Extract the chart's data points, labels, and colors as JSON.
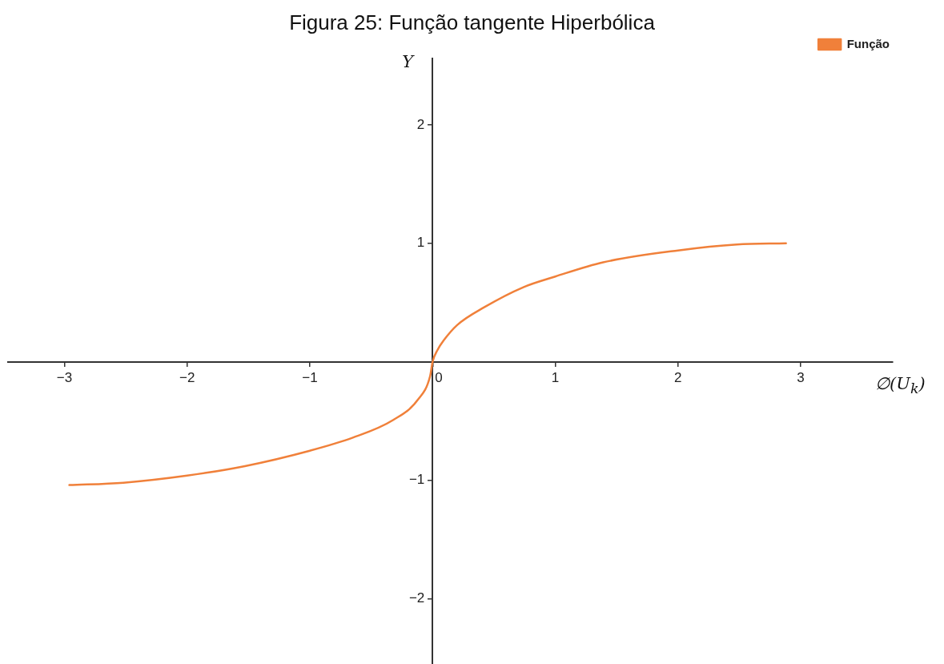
{
  "chart_data": {
    "type": "line",
    "title": "Figura 25: Função tangente Hiperbólica",
    "xlabel": "∅(U$_{k}$)",
    "ylabel": "Y",
    "legend": "top right",
    "grid": false,
    "marker": "none",
    "line_style": "solid",
    "xlim": [
      -3.46,
      3.75
    ],
    "ylim": [
      -2.55,
      2.56
    ],
    "xticks": [
      {
        "value": -3,
        "label": "−3"
      },
      {
        "value": -2,
        "label": "−2"
      },
      {
        "value": -1,
        "label": "−1"
      },
      0,
      1,
      2,
      3
    ],
    "yticks": [
      {
        "value": -2,
        "label": "−2"
      },
      {
        "value": -1,
        "label": "−1"
      },
      1,
      2
    ],
    "series": [
      {
        "name": "Função",
        "color": "#f0803a",
        "x": [
          -2.96,
          -2.52,
          -2.0,
          -1.53,
          -1.0,
          -0.65,
          -0.32,
          -0.12,
          -0.02,
          0,
          0.04,
          0.09,
          0.2,
          0.42,
          0.74,
          1.0,
          1.39,
          2.0,
          2.48,
          2.88
        ],
        "values": [
          -1.04,
          -1.02,
          -0.96,
          -0.88,
          -0.75,
          -0.64,
          -0.49,
          -0.32,
          -0.12,
          0,
          0.1,
          0.18,
          0.31,
          0.46,
          0.63,
          0.72,
          0.84,
          0.94,
          0.99,
          1.0
        ]
      }
    ]
  }
}
